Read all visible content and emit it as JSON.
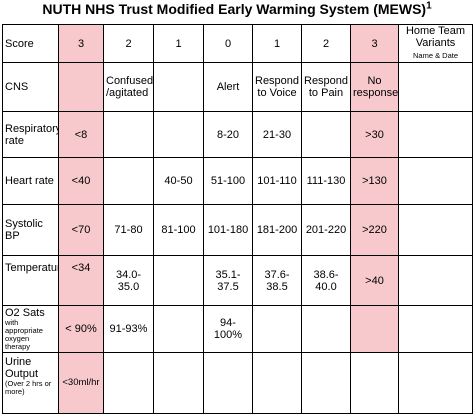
{
  "title": "NUTH NHS Trust Modified Early Warming System (MEWS)",
  "title_superscript": "1",
  "header": {
    "score_label": "Score",
    "scores": [
      "3",
      "2",
      "1",
      "0",
      "1",
      "2",
      "3"
    ],
    "variants_line1": "Home Team Variants",
    "variants_line2": "Name & Date"
  },
  "rows": [
    {
      "label": "CNS",
      "sub": "",
      "cells": [
        "",
        "Confused /agitated",
        "",
        "Alert",
        "Respond to Voice",
        "Respond to Pain",
        "No response"
      ]
    },
    {
      "label": "Respiratory rate",
      "sub": "",
      "cells": [
        "<8",
        "",
        "",
        "8-20",
        "21-30",
        "",
        ">30"
      ]
    },
    {
      "label": "Heart rate",
      "sub": "",
      "cells": [
        "<40",
        "",
        "40-50",
        "51-100",
        "101-110",
        "111-130",
        ">130"
      ]
    },
    {
      "label": "Systolic BP",
      "sub": "",
      "cells": [
        "<70",
        "71-80",
        "81-100",
        "101-180",
        "181-200",
        "201-220",
        ">220"
      ]
    },
    {
      "label": "Temperature",
      "sub": "",
      "cells": [
        "<34",
        "34.0- 35.0",
        "",
        "35.1- 37.5",
        "37.6- 38.5",
        "38.6- 40.0",
        ">40"
      ]
    },
    {
      "label": "O2 Sats",
      "sub": "with appropriate oxygen therapy",
      "cells": [
        "< 90%",
        "91-93%",
        "",
        "94-100%",
        "",
        "",
        ""
      ]
    },
    {
      "label": "Urine Output",
      "sub": "(Over 2 hrs or more)",
      "cells": [
        "<30ml/hr",
        "",
        "",
        "",
        "",
        "",
        ""
      ]
    }
  ],
  "colors": {
    "highlight": "#f8c9cc",
    "border": "#000000"
  }
}
